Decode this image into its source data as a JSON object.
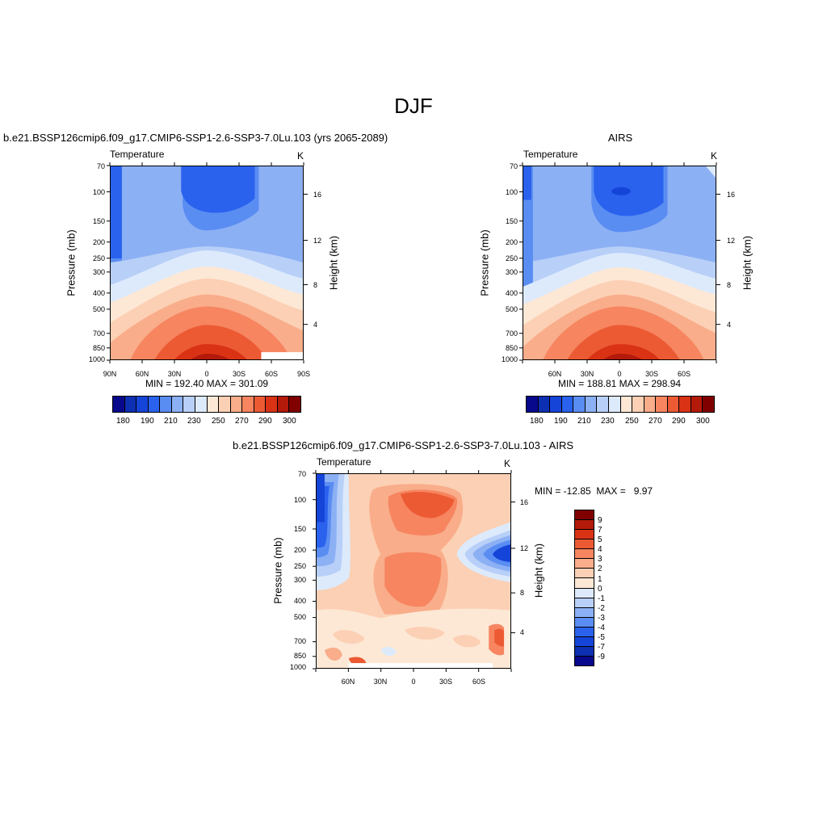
{
  "main_title": "DJF",
  "colors": {
    "temp_scale": [
      "#08088c",
      "#0d2fb2",
      "#1544d8",
      "#2a62ee",
      "#5a8df2",
      "#8cb0f4",
      "#b8cff8",
      "#dceafc",
      "#fde8d6",
      "#fcd0b4",
      "#f9ad8a",
      "#f68560",
      "#ec5a33",
      "#d93215",
      "#b41a0a",
      "#800000"
    ],
    "diff_scale": [
      "#08088c",
      "#0d2fb2",
      "#1544d8",
      "#2a62ee",
      "#5a8df2",
      "#8cb0f4",
      "#b8cff8",
      "#dceafc",
      "#fde8d6",
      "#fcd0b4",
      "#f9ad8a",
      "#f68560",
      "#ec5a33",
      "#d93215",
      "#b41a0a",
      "#800000"
    ]
  },
  "panels": {
    "model": {
      "title": "b.e21.BSSP126cmip6.f09_g17.CMIP6-SSP1-2.6-SSP3-7.0Lu.103 (yrs 2065-2089)",
      "variable": "Temperature",
      "units": "K",
      "y_label": "Pressure (mb)",
      "y2_label": "Height (km)",
      "stats": "MIN = 192.40  MAX = 301.09",
      "x_ticks": [
        "90N",
        "60N",
        "30N",
        "0",
        "30S",
        "60S",
        "90S"
      ],
      "p_ticks": [
        "70",
        "100",
        "150",
        "200",
        "250",
        "300",
        "400",
        "500",
        "700",
        "850",
        "1000"
      ],
      "h_ticks": [
        "16",
        "12",
        "8",
        "4"
      ],
      "colorbar_labels": [
        "180",
        "190",
        "210",
        "230",
        "250",
        "270",
        "290",
        "300"
      ]
    },
    "obs": {
      "title": "AIRS",
      "variable": "Temperature",
      "units": "K",
      "y_label": "Pressure (mb)",
      "y2_label": "Height (km)",
      "stats": "MIN = 188.81  MAX = 298.94",
      "x_ticks": [
        "60N",
        "30N",
        "0",
        "30S",
        "60S"
      ],
      "p_ticks": [
        "70",
        "100",
        "150",
        "200",
        "250",
        "300",
        "400",
        "500",
        "700",
        "850",
        "1000"
      ],
      "h_ticks": [
        "16",
        "12",
        "8",
        "4"
      ],
      "colorbar_labels": [
        "180",
        "190",
        "210",
        "230",
        "250",
        "270",
        "290",
        "300"
      ]
    },
    "diff": {
      "title": "b.e21.BSSP126cmip6.f09_g17.CMIP6-SSP1-2.6-SSP3-7.0Lu.103 - AIRS",
      "variable": "Temperature",
      "units": "K",
      "y_label": "Pressure (mb)",
      "y2_label": "Height (km)",
      "stats": "MIN = -12.85  MAX =   9.97",
      "x_ticks": [
        "60N",
        "30N",
        "0",
        "30S",
        "60S"
      ],
      "p_ticks": [
        "70",
        "100",
        "150",
        "200",
        "250",
        "300",
        "400",
        "500",
        "700",
        "850",
        "1000"
      ],
      "h_ticks": [
        "16",
        "12",
        "8",
        "4"
      ],
      "colorbar_labels": [
        "9",
        "7",
        "5",
        "4",
        "3",
        "2",
        "1",
        "0",
        "-1",
        "-2",
        "-3",
        "-4",
        "-5",
        "-7",
        "-9"
      ]
    }
  },
  "chart_data": [
    {
      "type": "heatmap",
      "title": "b.e21.BSSP126cmip6.f09_g17.CMIP6-SSP1-2.6-SSP3-7.0Lu.103 (yrs 2065-2089)",
      "variable": "Temperature",
      "units": "K",
      "xlabel": "",
      "ylabel": "Pressure (mb)",
      "y2label": "Height (km)",
      "xlim": [
        "90N",
        "90S"
      ],
      "ylim": [
        1000,
        70
      ],
      "y_scale": "log",
      "min": 192.4,
      "max": 301.09,
      "levels": [
        180,
        190,
        200,
        210,
        220,
        230,
        240,
        250,
        260,
        270,
        280,
        290,
        300
      ]
    },
    {
      "type": "heatmap",
      "title": "AIRS",
      "variable": "Temperature",
      "units": "K",
      "xlabel": "",
      "ylabel": "Pressure (mb)",
      "y2label": "Height (km)",
      "ylim": [
        1000,
        70
      ],
      "y_scale": "log",
      "min": 188.81,
      "max": 298.94,
      "levels": [
        180,
        190,
        200,
        210,
        220,
        230,
        240,
        250,
        260,
        270,
        280,
        290,
        300
      ]
    },
    {
      "type": "heatmap",
      "title": "b.e21.BSSP126cmip6.f09_g17.CMIP6-SSP1-2.6-SSP3-7.0Lu.103 - AIRS",
      "variable": "Temperature",
      "units": "K",
      "xlabel": "",
      "ylabel": "Pressure (mb)",
      "y2label": "Height (km)",
      "ylim": [
        1000,
        70
      ],
      "y_scale": "log",
      "min": -12.85,
      "max": 9.97,
      "levels": [
        -9,
        -7,
        -5,
        -4,
        -3,
        -2,
        -1,
        0,
        1,
        2,
        3,
        4,
        5,
        7,
        9
      ]
    }
  ]
}
